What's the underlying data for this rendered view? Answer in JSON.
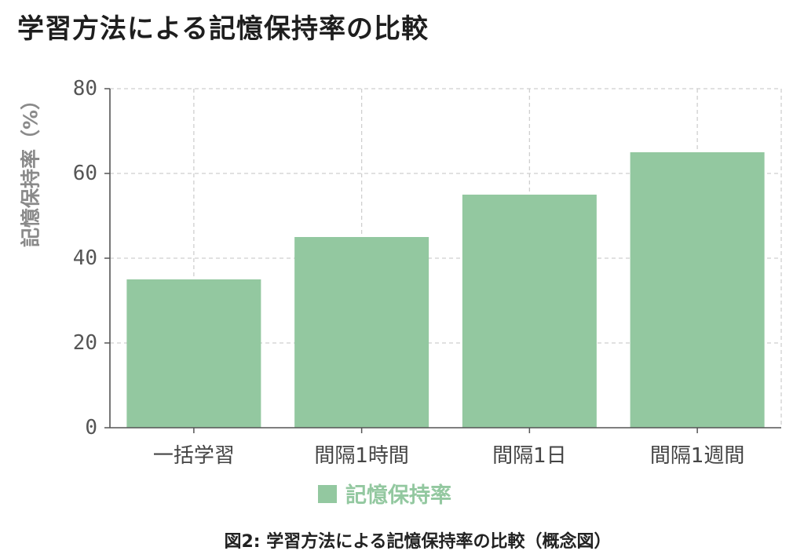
{
  "caption": "図2: 学習方法による記憶保持率の比較（概念図）",
  "colors": {
    "bar": "#93c8a0",
    "text": "#1e1e1e",
    "axis": "#555555",
    "grid": "#cfcfcf"
  },
  "chart_data": {
    "type": "bar",
    "title": "学習方法による記憶保持率の比較",
    "ylabel": "記憶保持率（%）",
    "categories": [
      "一括学習",
      "間隔1時間",
      "間隔1日",
      "間隔1週間"
    ],
    "series": [
      {
        "name": "記憶保持率",
        "values": [
          35,
          45,
          55,
          65
        ],
        "color": "#93c8a0"
      }
    ],
    "ylim": [
      0,
      80
    ],
    "yticks": [
      0,
      20,
      40,
      60,
      80
    ],
    "grid": true,
    "legend": "bottom-center"
  }
}
